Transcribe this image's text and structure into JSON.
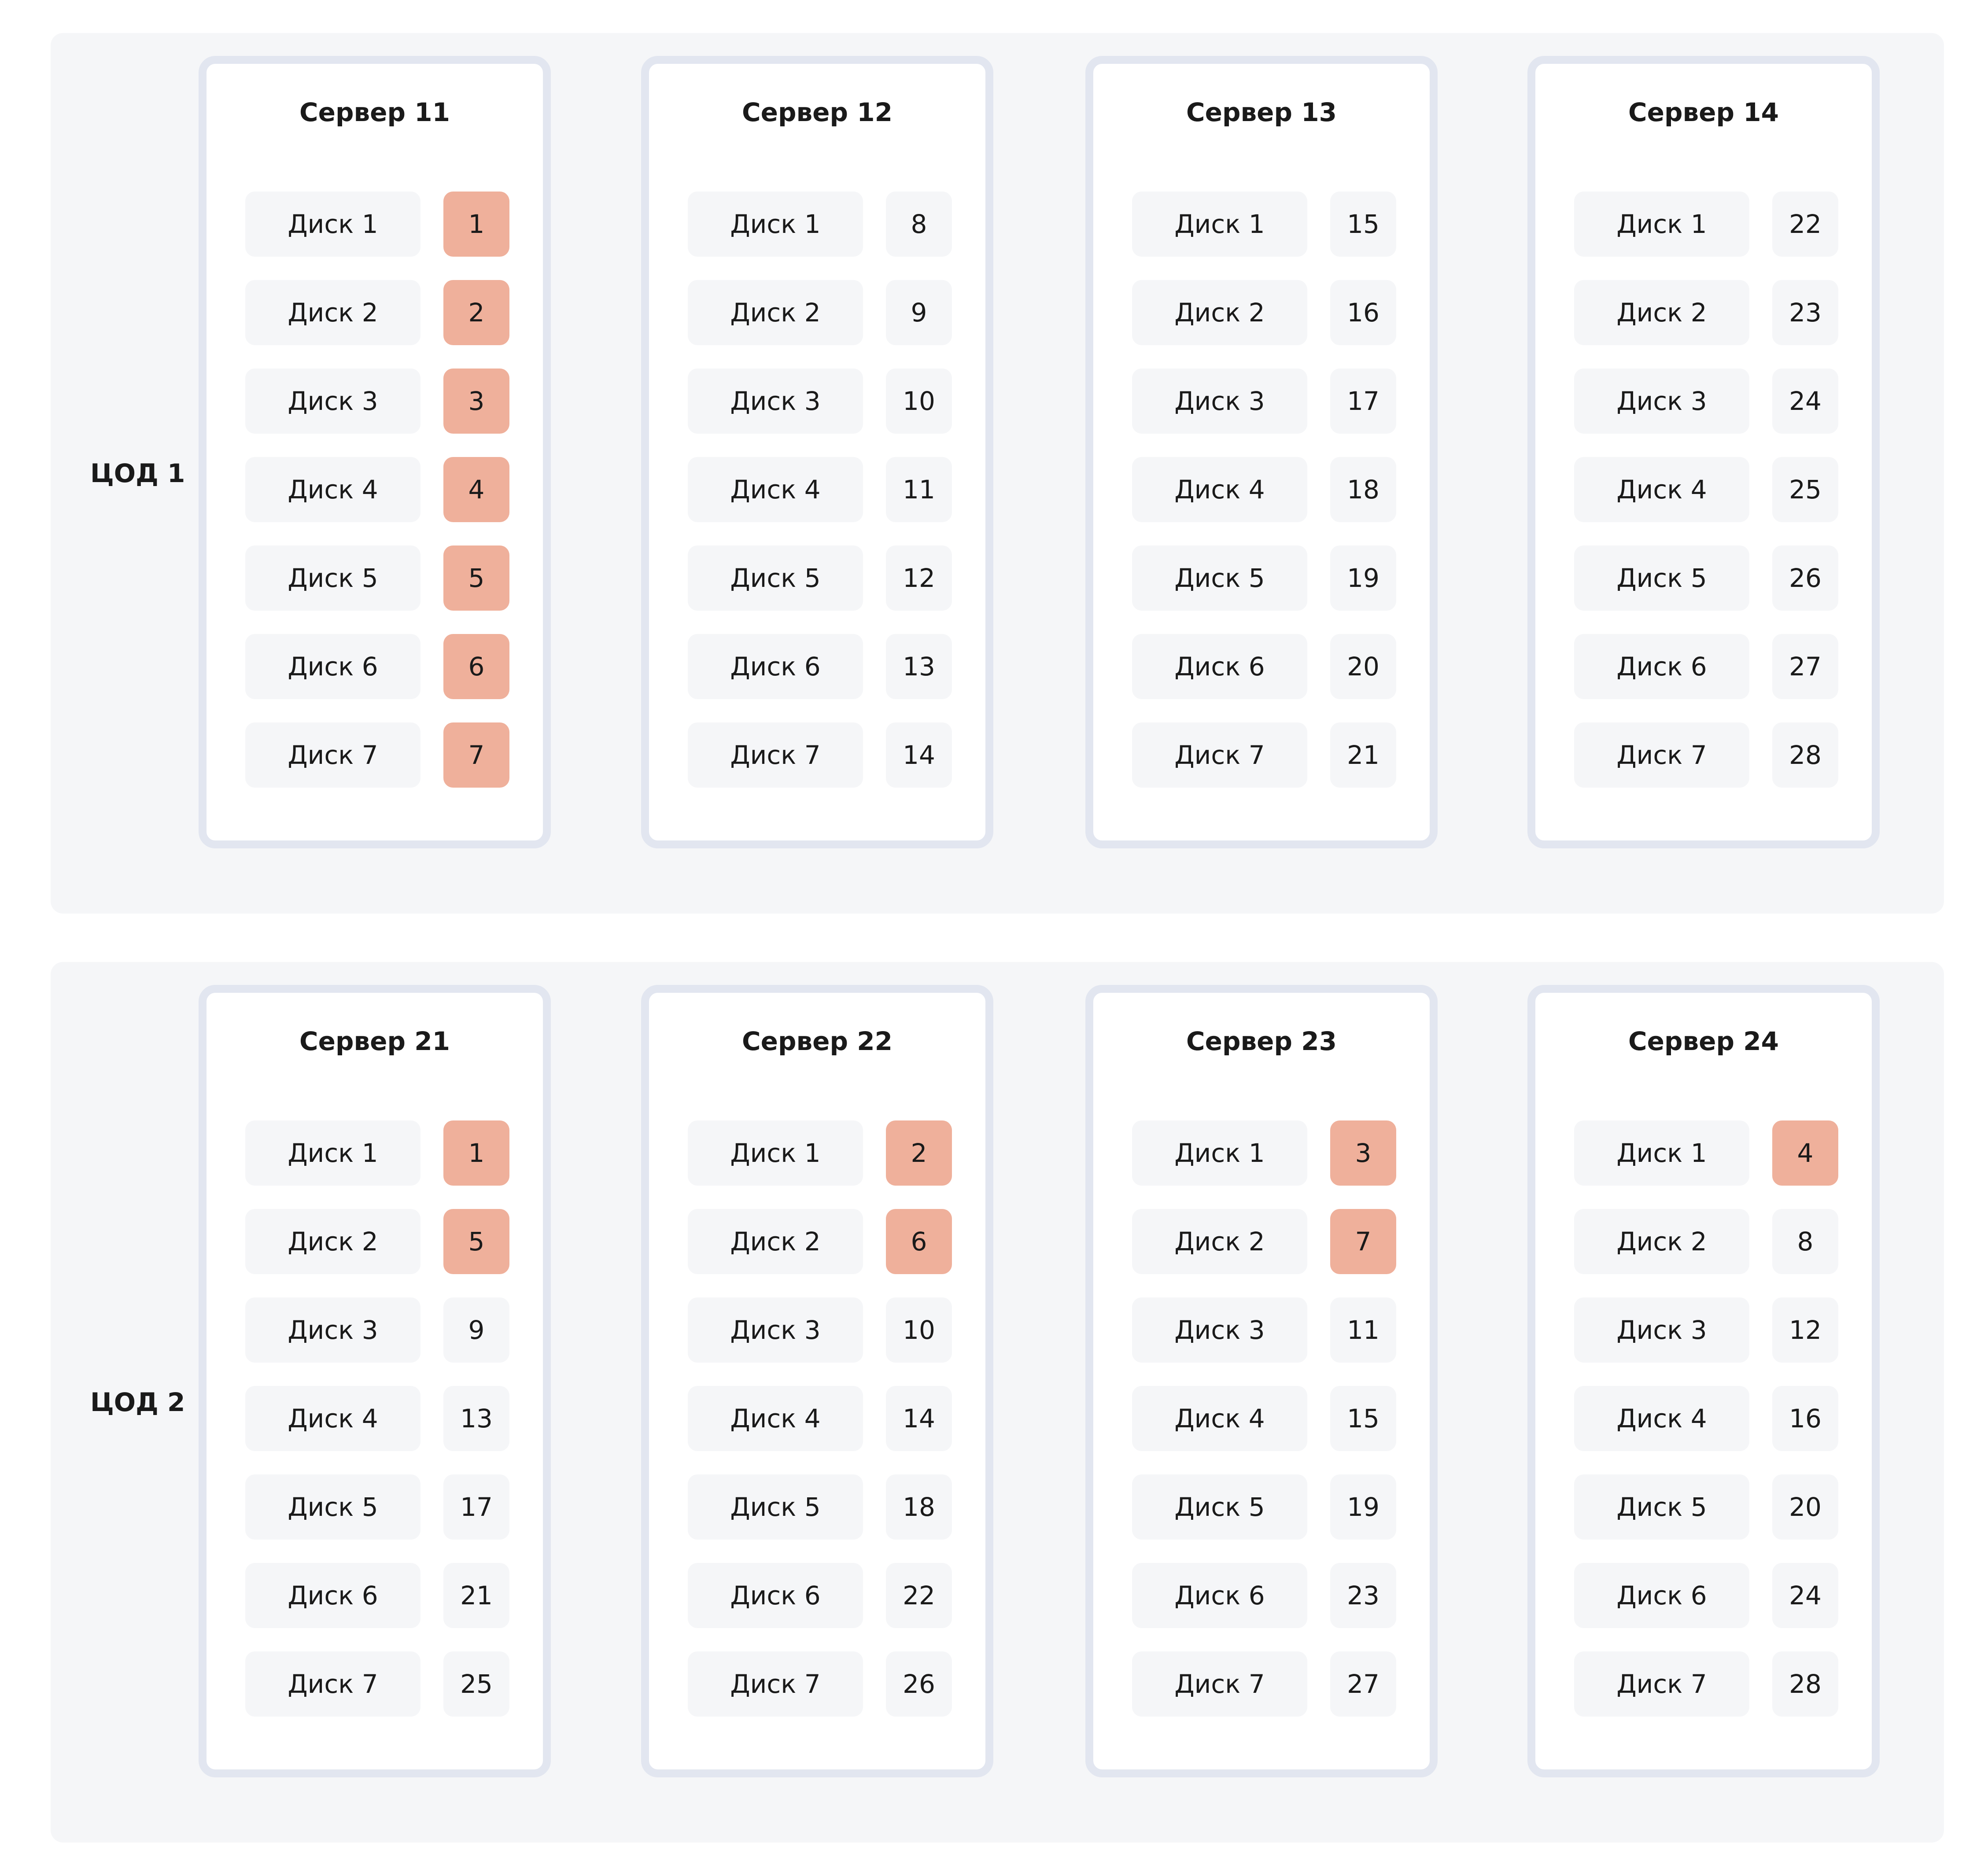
{
  "highlight_color": "#efb09b",
  "datacenters": [
    {
      "label": "ЦОД 1",
      "servers": [
        {
          "title": "Сервер 11",
          "disks": [
            {
              "label": "Диск 1",
              "value": "1",
              "highlight": true
            },
            {
              "label": "Диск 2",
              "value": "2",
              "highlight": true
            },
            {
              "label": "Диск 3",
              "value": "3",
              "highlight": true
            },
            {
              "label": "Диск 4",
              "value": "4",
              "highlight": true
            },
            {
              "label": "Диск 5",
              "value": "5",
              "highlight": true
            },
            {
              "label": "Диск 6",
              "value": "6",
              "highlight": true
            },
            {
              "label": "Диск 7",
              "value": "7",
              "highlight": true
            }
          ]
        },
        {
          "title": "Сервер 12",
          "disks": [
            {
              "label": "Диск 1",
              "value": "8",
              "highlight": false
            },
            {
              "label": "Диск 2",
              "value": "9",
              "highlight": false
            },
            {
              "label": "Диск 3",
              "value": "10",
              "highlight": false
            },
            {
              "label": "Диск 4",
              "value": "11",
              "highlight": false
            },
            {
              "label": "Диск 5",
              "value": "12",
              "highlight": false
            },
            {
              "label": "Диск 6",
              "value": "13",
              "highlight": false
            },
            {
              "label": "Диск 7",
              "value": "14",
              "highlight": false
            }
          ]
        },
        {
          "title": "Сервер 13",
          "disks": [
            {
              "label": "Диск 1",
              "value": "15",
              "highlight": false
            },
            {
              "label": "Диск 2",
              "value": "16",
              "highlight": false
            },
            {
              "label": "Диск 3",
              "value": "17",
              "highlight": false
            },
            {
              "label": "Диск 4",
              "value": "18",
              "highlight": false
            },
            {
              "label": "Диск 5",
              "value": "19",
              "highlight": false
            },
            {
              "label": "Диск 6",
              "value": "20",
              "highlight": false
            },
            {
              "label": "Диск 7",
              "value": "21",
              "highlight": false
            }
          ]
        },
        {
          "title": "Сервер 14",
          "disks": [
            {
              "label": "Диск 1",
              "value": "22",
              "highlight": false
            },
            {
              "label": "Диск 2",
              "value": "23",
              "highlight": false
            },
            {
              "label": "Диск 3",
              "value": "24",
              "highlight": false
            },
            {
              "label": "Диск 4",
              "value": "25",
              "highlight": false
            },
            {
              "label": "Диск 5",
              "value": "26",
              "highlight": false
            },
            {
              "label": "Диск 6",
              "value": "27",
              "highlight": false
            },
            {
              "label": "Диск 7",
              "value": "28",
              "highlight": false
            }
          ]
        }
      ]
    },
    {
      "label": "ЦОД 2",
      "servers": [
        {
          "title": "Сервер 21",
          "disks": [
            {
              "label": "Диск 1",
              "value": "1",
              "highlight": true
            },
            {
              "label": "Диск 2",
              "value": "5",
              "highlight": true
            },
            {
              "label": "Диск 3",
              "value": "9",
              "highlight": false
            },
            {
              "label": "Диск 4",
              "value": "13",
              "highlight": false
            },
            {
              "label": "Диск 5",
              "value": "17",
              "highlight": false
            },
            {
              "label": "Диск 6",
              "value": "21",
              "highlight": false
            },
            {
              "label": "Диск 7",
              "value": "25",
              "highlight": false
            }
          ]
        },
        {
          "title": "Сервер 22",
          "disks": [
            {
              "label": "Диск 1",
              "value": "2",
              "highlight": true
            },
            {
              "label": "Диск 2",
              "value": "6",
              "highlight": true
            },
            {
              "label": "Диск 3",
              "value": "10",
              "highlight": false
            },
            {
              "label": "Диск 4",
              "value": "14",
              "highlight": false
            },
            {
              "label": "Диск 5",
              "value": "18",
              "highlight": false
            },
            {
              "label": "Диск 6",
              "value": "22",
              "highlight": false
            },
            {
              "label": "Диск 7",
              "value": "26",
              "highlight": false
            }
          ]
        },
        {
          "title": "Сервер 23",
          "disks": [
            {
              "label": "Диск 1",
              "value": "3",
              "highlight": true
            },
            {
              "label": "Диск 2",
              "value": "7",
              "highlight": true
            },
            {
              "label": "Диск 3",
              "value": "11",
              "highlight": false
            },
            {
              "label": "Диск 4",
              "value": "15",
              "highlight": false
            },
            {
              "label": "Диск 5",
              "value": "19",
              "highlight": false
            },
            {
              "label": "Диск 6",
              "value": "23",
              "highlight": false
            },
            {
              "label": "Диск 7",
              "value": "27",
              "highlight": false
            }
          ]
        },
        {
          "title": "Сервер 24",
          "disks": [
            {
              "label": "Диск 1",
              "value": "4",
              "highlight": true
            },
            {
              "label": "Диск 2",
              "value": "8",
              "highlight": false
            },
            {
              "label": "Диск 3",
              "value": "12",
              "highlight": false
            },
            {
              "label": "Диск 4",
              "value": "16",
              "highlight": false
            },
            {
              "label": "Диск 5",
              "value": "20",
              "highlight": false
            },
            {
              "label": "Диск 6",
              "value": "24",
              "highlight": false
            },
            {
              "label": "Диск 7",
              "value": "28",
              "highlight": false
            }
          ]
        }
      ]
    }
  ]
}
